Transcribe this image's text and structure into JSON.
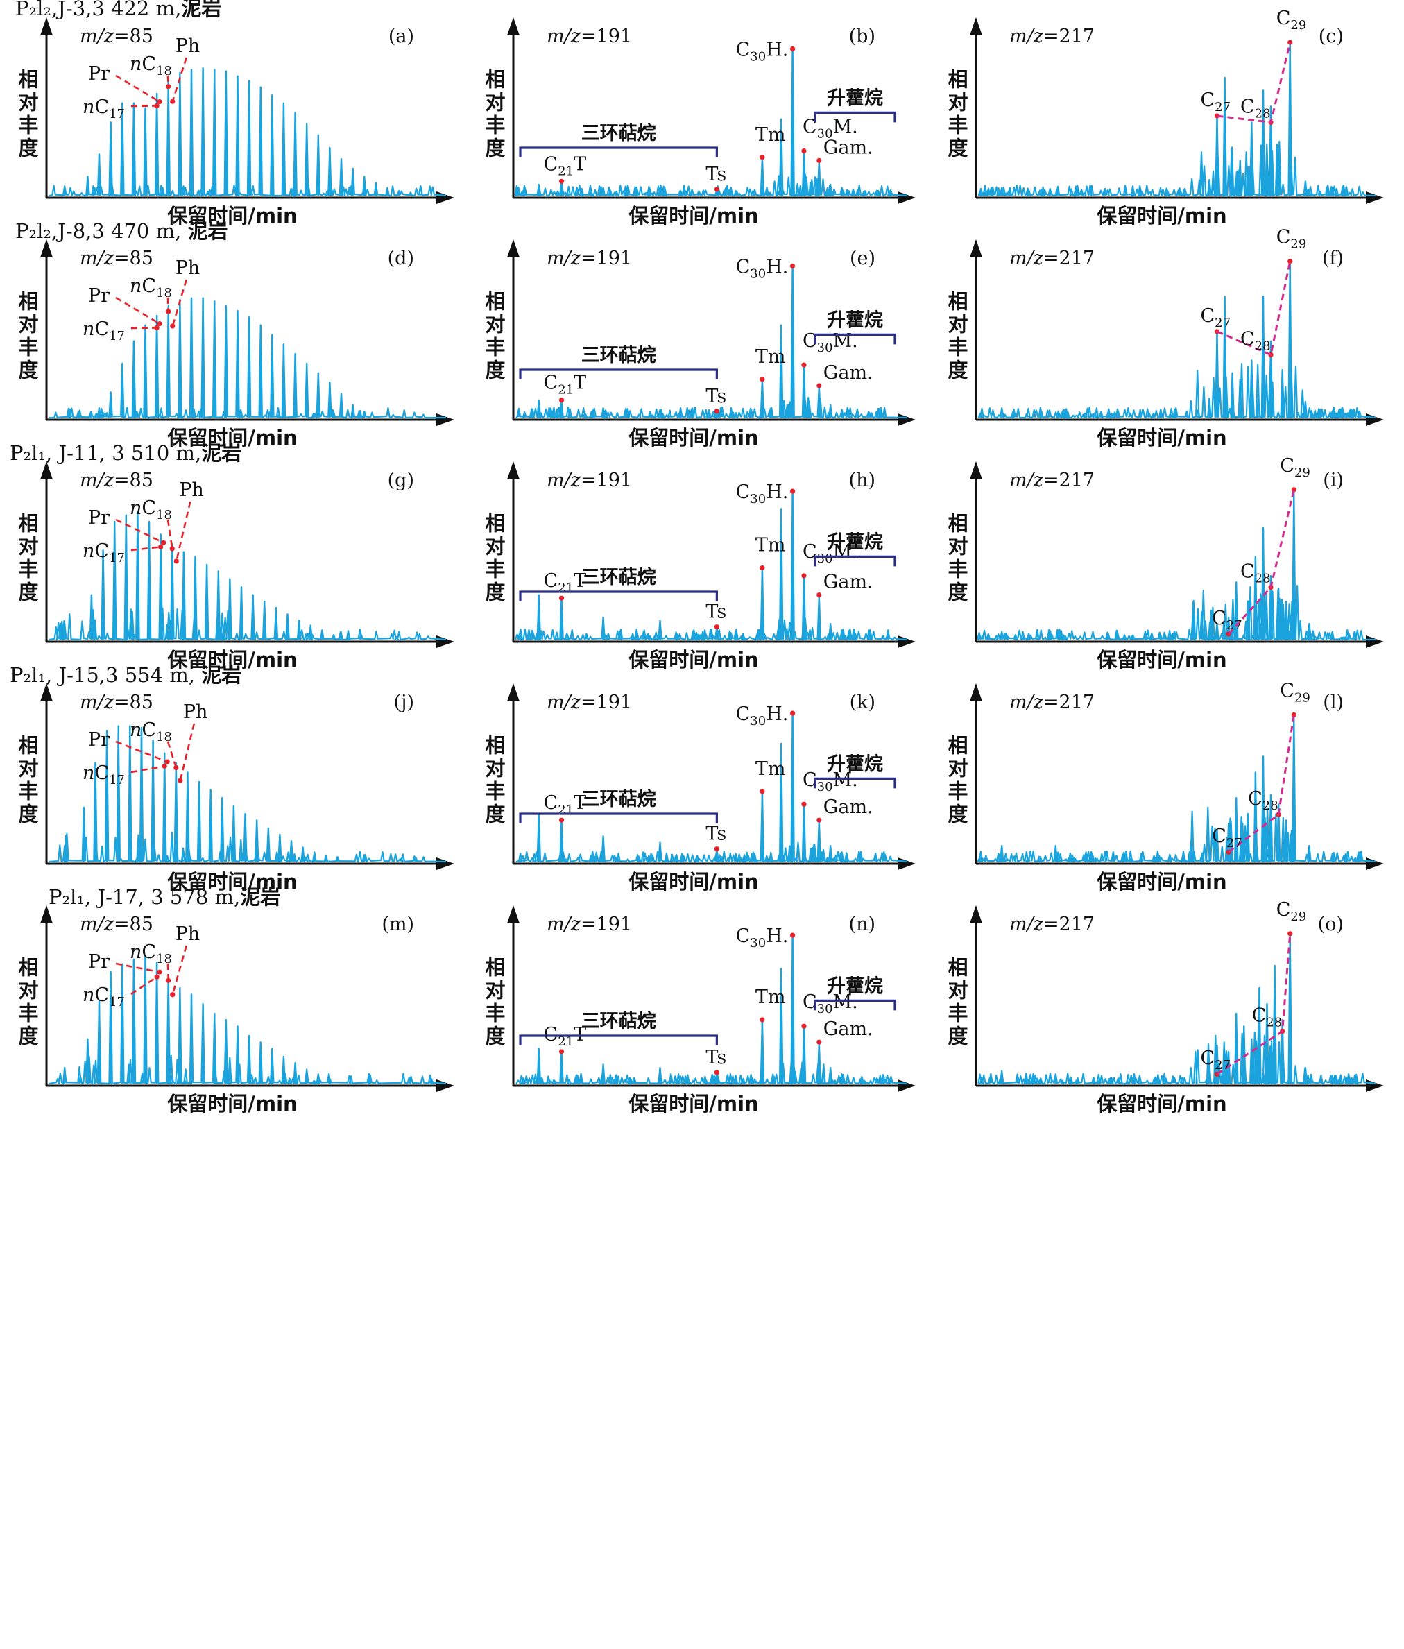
{
  "colors": {
    "trace": "#1aa3dd",
    "marker": "#e8202a",
    "c_series_line": "#d42a8f",
    "group_bracket": "#2b2f86",
    "axis": "#111111"
  },
  "common": {
    "ylabel": "相对丰度",
    "xlabel": "保留时间/min"
  },
  "rows": [
    {
      "header_fm": "P₂l₂",
      "header_rest": ",J-3,3 422 m,",
      "header_lith": "泥岩"
    },
    {
      "header_fm": "P₂l₂",
      "header_rest": ",J-8,3 470 m, ",
      "header_lith": "泥岩"
    },
    {
      "header_fm": "P₂l₁",
      "header_rest": ", J-11, 3 510 m,",
      "header_lith": "泥岩"
    },
    {
      "header_fm": "P₂l₁",
      "header_rest": ", J-15,3 554 m, ",
      "header_lith": "泥岩"
    },
    {
      "header_fm": "P₂l₁",
      "header_rest": ", J-17, 3 578 m,",
      "header_lith": "泥岩"
    }
  ],
  "chart_data": [
    {
      "type": "line",
      "panel": "(a)",
      "mz_label": "m/z=85",
      "xlabel": "保留时间/min",
      "ylabel": "相对丰度",
      "x": [
        0.04,
        0.1,
        0.13,
        0.16,
        0.19,
        0.22,
        0.25,
        0.28,
        0.31,
        0.34,
        0.37,
        0.4,
        0.43,
        0.46,
        0.49,
        0.52,
        0.55,
        0.58,
        0.61,
        0.64,
        0.67,
        0.7,
        0.73,
        0.76,
        0.79,
        0.82,
        0.85,
        0.88,
        0.91,
        0.94
      ],
      "y": [
        0.06,
        0.12,
        0.26,
        0.46,
        0.58,
        0.58,
        0.55,
        0.64,
        0.72,
        0.77,
        0.79,
        0.8,
        0.79,
        0.78,
        0.75,
        0.72,
        0.68,
        0.63,
        0.58,
        0.52,
        0.45,
        0.38,
        0.3,
        0.23,
        0.17,
        0.12,
        0.08,
        0.05,
        0.03,
        0.02
      ],
      "labels": [
        "nC17",
        "Pr",
        "nC18",
        "Ph"
      ]
    },
    {
      "type": "line",
      "panel": "(b)",
      "mz_label": "m/z=191",
      "xlabel": "保留时间/min",
      "ylabel": "相对丰度",
      "x": [
        0.06,
        0.12,
        0.23,
        0.38,
        0.53,
        0.58,
        0.65,
        0.7,
        0.73,
        0.76,
        0.8,
        0.83,
        0.86,
        0.89
      ],
      "y": [
        0.07,
        0.09,
        0.05,
        0.04,
        0.04,
        0.03,
        0.24,
        0.48,
        0.92,
        0.28,
        0.22,
        0.07,
        0.05,
        0.04
      ],
      "labels": [
        "C21T",
        "Ts",
        "Tm",
        "C30H.",
        "C30M.",
        "Gam."
      ],
      "groups": [
        "三环萜烷",
        "升藿烷"
      ]
    },
    {
      "type": "line",
      "panel": "(c)",
      "mz_label": "m/z=217",
      "xlabel": "保留时间/min",
      "ylabel": "相对丰度",
      "x": [
        0.06,
        0.42,
        0.6,
        0.62,
        0.64,
        0.66,
        0.68,
        0.7,
        0.71,
        0.74,
        0.76,
        0.78,
        0.81,
        0.85,
        0.92
      ],
      "y": [
        0.05,
        0.05,
        0.1,
        0.5,
        0.74,
        0.13,
        0.22,
        0.18,
        0.46,
        0.66,
        0.56,
        0.3,
        0.96,
        0.09,
        0.05
      ],
      "labels": [
        "C27",
        "C28",
        "C29"
      ]
    },
    {
      "type": "line",
      "panel": "(d)",
      "mz_label": "m/z=85",
      "xlabel": "保留时间/min",
      "ylabel": "相对丰度",
      "x": [
        0.13,
        0.16,
        0.19,
        0.22,
        0.25,
        0.28,
        0.31,
        0.34,
        0.37,
        0.4,
        0.43,
        0.46,
        0.49,
        0.52,
        0.55,
        0.58,
        0.61,
        0.64,
        0.67,
        0.7,
        0.73,
        0.76,
        0.79,
        0.82
      ],
      "y": [
        0.06,
        0.16,
        0.34,
        0.48,
        0.58,
        0.64,
        0.7,
        0.74,
        0.75,
        0.75,
        0.73,
        0.7,
        0.67,
        0.63,
        0.58,
        0.52,
        0.46,
        0.4,
        0.34,
        0.28,
        0.22,
        0.15,
        0.08,
        0.04
      ],
      "labels": [
        "nC17",
        "Pr",
        "nC18",
        "Ph"
      ]
    },
    {
      "type": "line",
      "panel": "(e)",
      "mz_label": "m/z=191",
      "xlabel": "保留时间/min",
      "ylabel": "相对丰度",
      "x": [
        0.06,
        0.12,
        0.23,
        0.38,
        0.53,
        0.58,
        0.65,
        0.7,
        0.73,
        0.76,
        0.8,
        0.83,
        0.86
      ],
      "y": [
        0.11,
        0.11,
        0.06,
        0.05,
        0.04,
        0.03,
        0.24,
        0.58,
        0.95,
        0.33,
        0.2,
        0.08,
        0.05
      ],
      "labels": [
        "C21T",
        "Ts",
        "Tm",
        "C30H.",
        "C30M.",
        "Gam."
      ],
      "groups": [
        "三环萜烷",
        "升藿烷"
      ]
    },
    {
      "type": "line",
      "panel": "(f)",
      "mz_label": "m/z=217",
      "xlabel": "保留时间/min",
      "ylabel": "相对丰度",
      "x": [
        0.06,
        0.42,
        0.6,
        0.62,
        0.64,
        0.66,
        0.68,
        0.71,
        0.74,
        0.76,
        0.79,
        0.81,
        0.85,
        0.92
      ],
      "y": [
        0.06,
        0.05,
        0.12,
        0.54,
        0.76,
        0.28,
        0.24,
        0.36,
        0.76,
        0.48,
        0.3,
        0.98,
        0.1,
        0.04
      ],
      "labels": [
        "C27",
        "C28",
        "C29"
      ]
    },
    {
      "type": "line",
      "panel": "(g)",
      "mz_label": "m/z=85",
      "xlabel": "保留时间/min",
      "ylabel": "相对丰度",
      "x": [
        0.04,
        0.11,
        0.14,
        0.17,
        0.2,
        0.23,
        0.26,
        0.29,
        0.32,
        0.35,
        0.38,
        0.41,
        0.44,
        0.47,
        0.5,
        0.53,
        0.56,
        0.59,
        0.62,
        0.65,
        0.68,
        0.71,
        0.74
      ],
      "y": [
        0.1,
        0.28,
        0.56,
        0.74,
        0.78,
        0.8,
        0.74,
        0.66,
        0.6,
        0.55,
        0.52,
        0.47,
        0.43,
        0.38,
        0.33,
        0.28,
        0.24,
        0.2,
        0.16,
        0.12,
        0.09,
        0.06,
        0.03
      ],
      "labels": [
        "nC17",
        "Pr",
        "nC18",
        "Ph"
      ]
    },
    {
      "type": "line",
      "panel": "(h)",
      "mz_label": "m/z=191",
      "xlabel": "保留时间/min",
      "ylabel": "相对丰度",
      "x": [
        0.06,
        0.12,
        0.23,
        0.38,
        0.53,
        0.58,
        0.65,
        0.7,
        0.73,
        0.76,
        0.8,
        0.83,
        0.86
      ],
      "y": [
        0.28,
        0.26,
        0.14,
        0.12,
        0.08,
        0.05,
        0.45,
        0.82,
        0.93,
        0.4,
        0.28,
        0.1,
        0.06
      ],
      "labels": [
        "C21T",
        "Ts",
        "Tm",
        "C30H.",
        "C30M.",
        "Gam."
      ],
      "groups": [
        "三环萜烷",
        "升藿烷"
      ]
    },
    {
      "type": "line",
      "panel": "(i)",
      "mz_label": "m/z=217",
      "xlabel": "保留时间/min",
      "ylabel": "相对丰度",
      "x": [
        0.06,
        0.45,
        0.62,
        0.65,
        0.67,
        0.7,
        0.72,
        0.74,
        0.76,
        0.78,
        0.8,
        0.82,
        0.86,
        0.92
      ],
      "y": [
        0.05,
        0.04,
        0.1,
        0.14,
        0.36,
        0.24,
        0.52,
        0.7,
        0.4,
        0.32,
        0.24,
        0.94,
        0.1,
        0.05
      ],
      "labels": [
        "C27",
        "C28",
        "C29"
      ]
    },
    {
      "type": "line",
      "panel": "(j)",
      "mz_label": "m/z=85",
      "xlabel": "保留时间/min",
      "ylabel": "相对丰度",
      "x": [
        0.04,
        0.09,
        0.12,
        0.15,
        0.18,
        0.21,
        0.24,
        0.27,
        0.3,
        0.33,
        0.36,
        0.39,
        0.42,
        0.45,
        0.48,
        0.51,
        0.54,
        0.57,
        0.6,
        0.63,
        0.66,
        0.69,
        0.72,
        0.75
      ],
      "y": [
        0.1,
        0.34,
        0.62,
        0.82,
        0.85,
        0.85,
        0.84,
        0.76,
        0.68,
        0.62,
        0.56,
        0.5,
        0.45,
        0.4,
        0.35,
        0.3,
        0.26,
        0.21,
        0.17,
        0.13,
        0.09,
        0.06,
        0.04,
        0.03
      ],
      "labels": [
        "nC17",
        "Pr",
        "nC18",
        "Ph"
      ]
    },
    {
      "type": "line",
      "panel": "(k)",
      "mz_label": "m/z=191",
      "xlabel": "保留时间/min",
      "ylabel": "相对丰度",
      "x": [
        0.06,
        0.12,
        0.23,
        0.38,
        0.53,
        0.58,
        0.65,
        0.7,
        0.73,
        0.76,
        0.8,
        0.83,
        0.86
      ],
      "y": [
        0.3,
        0.26,
        0.16,
        0.12,
        0.08,
        0.05,
        0.44,
        0.74,
        0.93,
        0.36,
        0.26,
        0.1,
        0.06
      ],
      "labels": [
        "C21T",
        "Ts",
        "Tm",
        "C30H.",
        "C30M.",
        "Gam."
      ],
      "groups": [
        "三环萜烷",
        "升藿烷"
      ]
    },
    {
      "type": "line",
      "panel": "(l)",
      "mz_label": "m/z=217",
      "xlabel": "保留时间/min",
      "ylabel": "相对丰度",
      "x": [
        0.06,
        0.2,
        0.62,
        0.65,
        0.67,
        0.7,
        0.72,
        0.74,
        0.76,
        0.78,
        0.8,
        0.82,
        0.86,
        0.92
      ],
      "y": [
        0.1,
        0.1,
        0.2,
        0.24,
        0.4,
        0.3,
        0.56,
        0.66,
        0.42,
        0.36,
        0.26,
        0.92,
        0.1,
        0.05
      ],
      "labels": [
        "C27",
        "C28",
        "C29"
      ]
    },
    {
      "type": "line",
      "panel": "(m)",
      "mz_label": "m/z=85",
      "xlabel": "保留时间/min",
      "ylabel": "相对丰度",
      "x": [
        0.04,
        0.1,
        0.13,
        0.16,
        0.19,
        0.22,
        0.25,
        0.28,
        0.31,
        0.34,
        0.37,
        0.4,
        0.43,
        0.46,
        0.49,
        0.52,
        0.55,
        0.58,
        0.61,
        0.64,
        0.67,
        0.7,
        0.73
      ],
      "y": [
        0.1,
        0.28,
        0.52,
        0.7,
        0.75,
        0.78,
        0.8,
        0.76,
        0.68,
        0.6,
        0.56,
        0.5,
        0.44,
        0.4,
        0.36,
        0.3,
        0.26,
        0.22,
        0.17,
        0.13,
        0.09,
        0.06,
        0.03
      ],
      "labels": [
        "nC17",
        "Pr",
        "nC18",
        "Ph"
      ]
    },
    {
      "type": "line",
      "panel": "(n)",
      "mz_label": "m/z=191",
      "xlabel": "保留时间/min",
      "ylabel": "相对丰度",
      "x": [
        0.06,
        0.12,
        0.23,
        0.38,
        0.53,
        0.58,
        0.65,
        0.7,
        0.73,
        0.76,
        0.8,
        0.83,
        0.86
      ],
      "y": [
        0.22,
        0.2,
        0.12,
        0.1,
        0.07,
        0.05,
        0.4,
        0.72,
        0.93,
        0.36,
        0.26,
        0.1,
        0.06
      ],
      "labels": [
        "C21T",
        "Ts",
        "Tm",
        "C30H.",
        "C30M.",
        "Gam."
      ],
      "groups": [
        "三环萜烷",
        "升藿烷"
      ]
    },
    {
      "type": "line",
      "panel": "(o)",
      "mz_label": "m/z=217",
      "xlabel": "保留时间/min",
      "ylabel": "相对丰度",
      "x": [
        0.06,
        0.2,
        0.6,
        0.62,
        0.65,
        0.67,
        0.69,
        0.71,
        0.73,
        0.75,
        0.77,
        0.79,
        0.81,
        0.85,
        0.92
      ],
      "y": [
        0.08,
        0.06,
        0.12,
        0.24,
        0.2,
        0.44,
        0.36,
        0.28,
        0.6,
        0.5,
        0.74,
        0.4,
        0.94,
        0.1,
        0.05
      ],
      "labels": [
        "C27",
        "C28",
        "C29"
      ]
    }
  ]
}
